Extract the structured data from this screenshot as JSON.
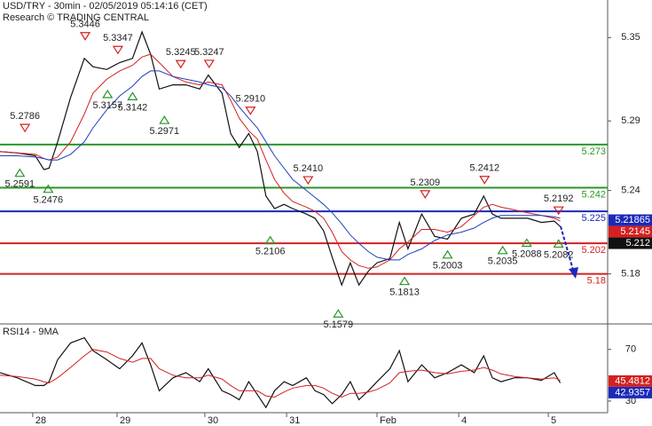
{
  "chart_data": [
    {
      "type": "line",
      "title": "USD/TRY - 30min - 02/05/2019 05:14:16 (CET)",
      "subtitle": "Research © TRADING CENTRAL",
      "x": [
        -0.38,
        -0.18,
        0.03,
        0.13,
        0.19,
        0.29,
        0.44,
        0.6,
        0.7,
        0.86,
        1.01,
        1.16,
        1.27,
        1.37,
        1.47,
        1.63,
        1.78,
        1.94,
        2.04,
        2.2,
        2.3,
        2.4,
        2.51,
        2.61,
        2.71,
        2.81,
        2.92,
        3.02,
        3.18,
        3.28,
        3.38,
        3.48,
        3.59,
        3.69,
        3.79,
        3.9,
        4.0,
        4.15,
        4.26,
        4.36,
        4.52,
        4.67,
        4.82,
        4.98,
        5.13,
        5.24,
        5.34,
        5.44,
        5.6,
        5.75,
        5.91,
        6.06,
        6.13
      ],
      "xlim": [
        -0.38,
        6.68
      ],
      "ylim": [
        5.144,
        5.377
      ],
      "yticks": [
        5.18,
        5.24,
        5.29,
        5.35
      ],
      "series": [
        {
          "color": "#111111",
          "values": [
            5.268,
            5.267,
            5.265,
            5.255,
            5.256,
            5.275,
            5.307,
            5.335,
            5.329,
            5.327,
            5.332,
            5.335,
            5.354,
            5.338,
            5.313,
            5.316,
            5.316,
            5.313,
            5.323,
            5.31,
            5.281,
            5.271,
            5.281,
            5.268,
            5.236,
            5.227,
            5.23,
            5.227,
            5.223,
            5.22,
            5.211,
            5.192,
            5.172,
            5.188,
            5.172,
            5.182,
            5.188,
            5.191,
            5.217,
            5.198,
            5.223,
            5.207,
            5.205,
            5.22,
            5.223,
            5.236,
            5.223,
            5.22,
            5.22,
            5.22,
            5.217,
            5.218,
            5.214
          ]
        },
        {
          "color": "#d42020",
          "values": [
            5.268,
            5.267,
            5.266,
            5.263,
            5.262,
            5.264,
            5.275,
            5.295,
            5.31,
            5.32,
            5.326,
            5.33,
            5.336,
            5.338,
            5.332,
            5.322,
            5.318,
            5.316,
            5.318,
            5.316,
            5.305,
            5.292,
            5.283,
            5.277,
            5.262,
            5.248,
            5.238,
            5.232,
            5.228,
            5.225,
            5.22,
            5.21,
            5.196,
            5.19,
            5.186,
            5.184,
            5.185,
            5.19,
            5.198,
            5.203,
            5.212,
            5.212,
            5.21,
            5.214,
            5.222,
            5.228,
            5.23,
            5.228,
            5.226,
            5.224,
            5.222,
            5.22,
            5.218
          ]
        },
        {
          "color": "#1f3fbf",
          "values": [
            5.265,
            5.265,
            5.264,
            5.263,
            5.262,
            5.262,
            5.266,
            5.275,
            5.285,
            5.298,
            5.308,
            5.315,
            5.322,
            5.326,
            5.326,
            5.322,
            5.32,
            5.318,
            5.316,
            5.314,
            5.308,
            5.3,
            5.292,
            5.285,
            5.275,
            5.265,
            5.256,
            5.248,
            5.24,
            5.235,
            5.23,
            5.224,
            5.216,
            5.208,
            5.202,
            5.196,
            5.192,
            5.19,
            5.19,
            5.194,
            5.198,
            5.204,
            5.208,
            5.21,
            5.213,
            5.217,
            5.22,
            5.222,
            5.222,
            5.222,
            5.222,
            5.221,
            5.22
          ]
        }
      ],
      "levels": [
        {
          "value": 5.273,
          "color": "#2a962a"
        },
        {
          "value": 5.242,
          "color": "#2a962a"
        },
        {
          "value": 5.225,
          "color": "#1a2ab8"
        },
        {
          "value": 5.202,
          "color": "#d42020"
        },
        {
          "value": 5.18,
          "color": "#d42020"
        }
      ],
      "annotations": [
        {
          "x": 0.61,
          "value": 5.3446,
          "kind": "high"
        },
        {
          "x": 0.99,
          "value": 5.3347,
          "kind": "high"
        },
        {
          "x": 1.72,
          "value": 5.3245,
          "kind": "high"
        },
        {
          "x": 2.05,
          "value": 5.3247,
          "kind": "high"
        },
        {
          "x": -0.09,
          "value": 5.2786,
          "kind": "high"
        },
        {
          "x": 2.53,
          "value": 5.291,
          "label": "5.2910",
          "kind": "high"
        },
        {
          "x": 3.2,
          "value": 5.241,
          "label": "5.2410",
          "kind": "high"
        },
        {
          "x": 4.56,
          "value": 5.2309,
          "kind": "high"
        },
        {
          "x": 5.25,
          "value": 5.2412,
          "kind": "high"
        },
        {
          "x": 6.11,
          "value": 5.2192,
          "kind": "high"
        },
        {
          "x": -0.15,
          "value": 5.2591,
          "kind": "low"
        },
        {
          "x": 0.18,
          "value": 5.2476,
          "kind": "low"
        },
        {
          "x": 0.87,
          "value": 5.3157,
          "kind": "low"
        },
        {
          "x": 1.16,
          "value": 5.3142,
          "kind": "low"
        },
        {
          "x": 1.53,
          "value": 5.2971,
          "kind": "low"
        },
        {
          "x": 2.76,
          "value": 5.2106,
          "kind": "low"
        },
        {
          "x": 3.55,
          "value": 5.1579,
          "kind": "low"
        },
        {
          "x": 4.32,
          "value": 5.1813,
          "kind": "low"
        },
        {
          "x": 4.82,
          "value": 5.2003,
          "kind": "low"
        },
        {
          "x": 5.46,
          "value": 5.2035,
          "kind": "low"
        },
        {
          "x": 5.74,
          "value": 5.2088,
          "kind": "low"
        },
        {
          "x": 6.11,
          "value": 5.2082,
          "kind": "low"
        }
      ],
      "price_tags": [
        {
          "value": 5.21865,
          "color": "#1a2ab8"
        },
        {
          "value": 5.2145,
          "color": "#d42020"
        },
        {
          "value": 5.212,
          "color": "#111111"
        }
      ]
    },
    {
      "type": "line",
      "title": "RSI14 - 9MA",
      "x": [
        -0.38,
        -0.18,
        0.03,
        0.13,
        0.19,
        0.29,
        0.44,
        0.6,
        0.7,
        0.86,
        1.01,
        1.16,
        1.27,
        1.37,
        1.47,
        1.63,
        1.78,
        1.94,
        2.04,
        2.2,
        2.3,
        2.4,
        2.51,
        2.61,
        2.71,
        2.81,
        2.92,
        3.02,
        3.18,
        3.28,
        3.38,
        3.48,
        3.59,
        3.69,
        3.79,
        3.9,
        4.0,
        4.15,
        4.26,
        4.36,
        4.52,
        4.67,
        4.82,
        4.98,
        5.13,
        5.24,
        5.34,
        5.44,
        5.6,
        5.75,
        5.91,
        6.06,
        6.13
      ],
      "xlim": [
        -0.38,
        6.68
      ],
      "xticks": [
        {
          "value": 0,
          "label": "28"
        },
        {
          "value": 0.98,
          "label": "29"
        },
        {
          "value": 2.0,
          "label": "30"
        },
        {
          "value": 2.95,
          "label": "31"
        },
        {
          "value": 4.0,
          "label": "Feb"
        },
        {
          "value": 4.95,
          "label": "4"
        },
        {
          "value": 5.99,
          "label": "5"
        }
      ],
      "ylim": [
        21,
        89
      ],
      "yticks": [
        30,
        70
      ],
      "series": [
        {
          "color": "#111111",
          "values": [
            52,
            48,
            42,
            42,
            45,
            62,
            75,
            79,
            69,
            62,
            55,
            65,
            75,
            58,
            38,
            48,
            52,
            45,
            55,
            38,
            35,
            31,
            45,
            35,
            25,
            38,
            45,
            42,
            48,
            38,
            35,
            28,
            35,
            45,
            31,
            38,
            45,
            55,
            69,
            45,
            58,
            48,
            52,
            58,
            52,
            65,
            48,
            45,
            48,
            48,
            46,
            52,
            44
          ]
        },
        {
          "color": "#d42020",
          "values": [
            50,
            49,
            47,
            45,
            44,
            48,
            56,
            65,
            70,
            68,
            63,
            60,
            63,
            63,
            55,
            50,
            48,
            48,
            50,
            47,
            42,
            38,
            38,
            38,
            34,
            33,
            37,
            40,
            42,
            42,
            40,
            36,
            33,
            36,
            36,
            37,
            39,
            44,
            52,
            53,
            54,
            52,
            51,
            53,
            54,
            56,
            54,
            51,
            49,
            48,
            47,
            48,
            46
          ]
        }
      ],
      "price_tags": [
        {
          "value": 45.4812,
          "color": "#d42020"
        },
        {
          "value": 42.9357,
          "color": "#1a2ab8"
        }
      ]
    }
  ]
}
